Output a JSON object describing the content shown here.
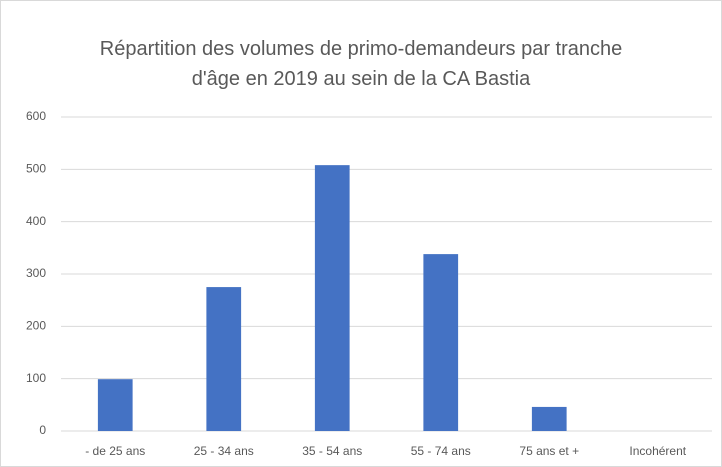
{
  "chart_data": {
    "type": "bar",
    "title": "Répartition des volumes de primo-demandeurs par tranche d'âge en 2019 au sein de la CA Bastia",
    "categories": [
      "- de 25 ans",
      "25 - 34 ans",
      "35 - 54 ans",
      "55 - 74 ans",
      "75 ans et +",
      "Incohérent"
    ],
    "values": [
      99,
      275,
      508,
      338,
      46,
      0
    ],
    "color": "#4472c4",
    "ylim": [
      0,
      600
    ],
    "yticks": [
      0,
      100,
      200,
      300,
      400,
      500,
      600
    ],
    "grid": true
  }
}
